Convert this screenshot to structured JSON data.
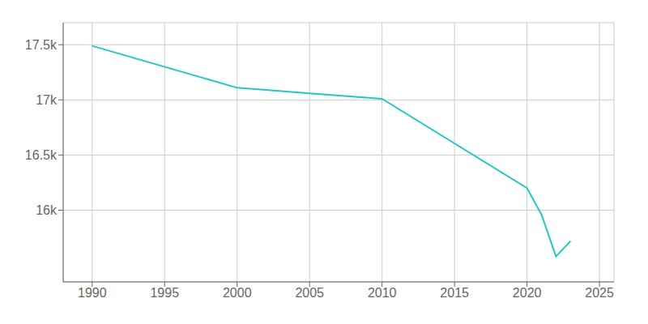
{
  "chart_data": {
    "type": "line",
    "x": [
      1990,
      2000,
      2005,
      2010,
      2020,
      2021,
      2022,
      2023
    ],
    "values": [
      17490,
      17110,
      17060,
      17010,
      16200,
      15960,
      15580,
      15720
    ],
    "color": "#26C6C6",
    "xlim": [
      1988,
      2026
    ],
    "ylim": [
      15350,
      17700
    ],
    "xticks": [
      1990,
      1995,
      2000,
      2005,
      2010,
      2015,
      2020,
      2025
    ],
    "yticks": [
      {
        "value": 16000,
        "label": "16k"
      },
      {
        "value": 16500,
        "label": "16.5k"
      },
      {
        "value": 17000,
        "label": "17k"
      },
      {
        "value": 17500,
        "label": "17.5k"
      }
    ],
    "grid": true
  }
}
